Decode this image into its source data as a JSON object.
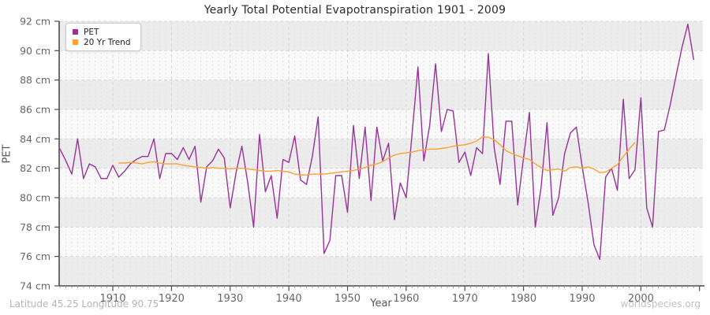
{
  "title": "Yearly Total Potential Evapotranspiration 1901 - 2009",
  "axes": {
    "x_label": "Year",
    "y_label": "PET",
    "y_unit": "cm",
    "x_ticks": [
      1910,
      1920,
      1930,
      1940,
      1950,
      1960,
      1970,
      1980,
      1990,
      2000
    ],
    "y_ticks": [
      92,
      90,
      88,
      86,
      84,
      82,
      80,
      78,
      76,
      74
    ]
  },
  "legend": {
    "items": [
      {
        "label": "PET",
        "color": "#993399"
      },
      {
        "label": "20 Yr Trend",
        "color": "#ffa033"
      }
    ]
  },
  "footer": {
    "left": "Latitude 45.25 Longitude 90.75",
    "right": "worldspecies.org"
  },
  "chart_data": {
    "type": "line",
    "title": "Yearly Total Potential Evapotranspiration 1901 - 2009",
    "xlabel": "Year",
    "ylabel": "PET",
    "y_unit": "cm",
    "xlim": [
      1901,
      2010
    ],
    "ylim": [
      74,
      92
    ],
    "x_ticks": [
      1910,
      1920,
      1930,
      1940,
      1950,
      1960,
      1970,
      1980,
      1990,
      2000
    ],
    "y_ticks": [
      92,
      90,
      88,
      86,
      84,
      82,
      80,
      78,
      76,
      74
    ],
    "grid": true,
    "legend_position": "top-left",
    "plot_band_colors": [
      "#ececec",
      "#f9f9f9"
    ],
    "series": [
      {
        "name": "PET",
        "color": "#993399",
        "x_start": 1901,
        "values": [
          83.3,
          82.5,
          81.6,
          84.0,
          81.3,
          82.3,
          82.1,
          81.3,
          81.3,
          82.2,
          81.4,
          81.8,
          82.3,
          82.6,
          82.8,
          82.8,
          84.0,
          81.3,
          83.0,
          83.0,
          82.6,
          83.4,
          82.6,
          83.5,
          79.7,
          82.1,
          82.5,
          83.3,
          82.7,
          79.3,
          81.7,
          83.5,
          81.0,
          78.0,
          84.3,
          80.4,
          81.5,
          78.6,
          82.6,
          82.4,
          84.2,
          81.2,
          80.9,
          82.8,
          85.5,
          76.2,
          77.1,
          81.5,
          81.5,
          79.0,
          84.9,
          81.3,
          84.8,
          79.8,
          84.8,
          82.5,
          83.7,
          78.5,
          81.0,
          80.0,
          84.3,
          88.9,
          82.5,
          84.9,
          89.1,
          84.5,
          86.0,
          85.9,
          82.4,
          83.1,
          81.5,
          83.4,
          83.0,
          89.8,
          83.4,
          80.9,
          85.2,
          85.2,
          79.5,
          82.7,
          85.8,
          78.0,
          80.7,
          85.1,
          78.8,
          80.0,
          83.0,
          84.4,
          84.8,
          82.1,
          79.7,
          76.8,
          75.8,
          81.4,
          82.0,
          80.5,
          86.7,
          81.3,
          81.9,
          86.8,
          79.3,
          78.0,
          84.5,
          84.6,
          86.3,
          88.3,
          90.2,
          91.8,
          89.4
        ]
      },
      {
        "name": "20 Yr Trend",
        "color": "#ffa033",
        "x_start": 1911,
        "values": [
          82.35,
          82.35,
          82.4,
          82.35,
          82.3,
          82.4,
          82.45,
          82.35,
          82.3,
          82.3,
          82.3,
          82.2,
          82.15,
          82.1,
          82.05,
          82.0,
          82.05,
          82.0,
          82.0,
          81.95,
          82.0,
          82.0,
          81.95,
          81.9,
          81.85,
          81.8,
          81.8,
          81.85,
          81.8,
          81.75,
          81.6,
          81.55,
          81.55,
          81.6,
          81.6,
          81.6,
          81.65,
          81.7,
          81.75,
          81.8,
          81.85,
          81.95,
          82.05,
          82.2,
          82.3,
          82.45,
          82.7,
          82.9,
          83.0,
          83.05,
          83.1,
          83.2,
          83.25,
          83.3,
          83.3,
          83.35,
          83.4,
          83.5,
          83.55,
          83.6,
          83.7,
          83.85,
          84.15,
          84.1,
          83.95,
          83.6,
          83.2,
          83.0,
          82.85,
          82.7,
          82.6,
          82.3,
          82.05,
          81.85,
          81.9,
          81.95,
          81.8,
          82.05,
          82.1,
          82.0,
          82.1,
          81.95,
          81.7,
          81.75,
          82.0,
          82.25,
          82.8,
          83.3,
          83.75
        ]
      }
    ]
  }
}
